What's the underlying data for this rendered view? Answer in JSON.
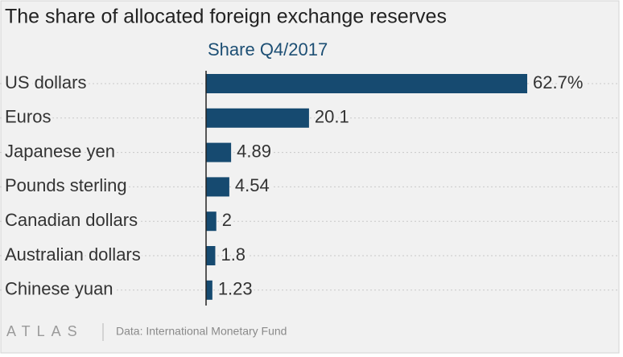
{
  "chart_data": {
    "type": "bar",
    "orientation": "horizontal",
    "title": "The share of allocated foreign exchange reserves",
    "subtitle": "Share Q4/2017",
    "categories": [
      "US dollars",
      "Euros",
      "Japanese yen",
      "Pounds sterling",
      "Canadian dollars",
      "Australian dollars",
      "Chinese yuan"
    ],
    "values": [
      62.7,
      20.1,
      4.89,
      4.54,
      2,
      1.8,
      1.23
    ],
    "value_labels": [
      "62.7%",
      "20.1",
      "4.89",
      "4.54",
      "2",
      "1.8",
      "1.23"
    ],
    "color": "#164a70",
    "logo": "ATLAS",
    "source": "Data: International Monetary Fund"
  }
}
